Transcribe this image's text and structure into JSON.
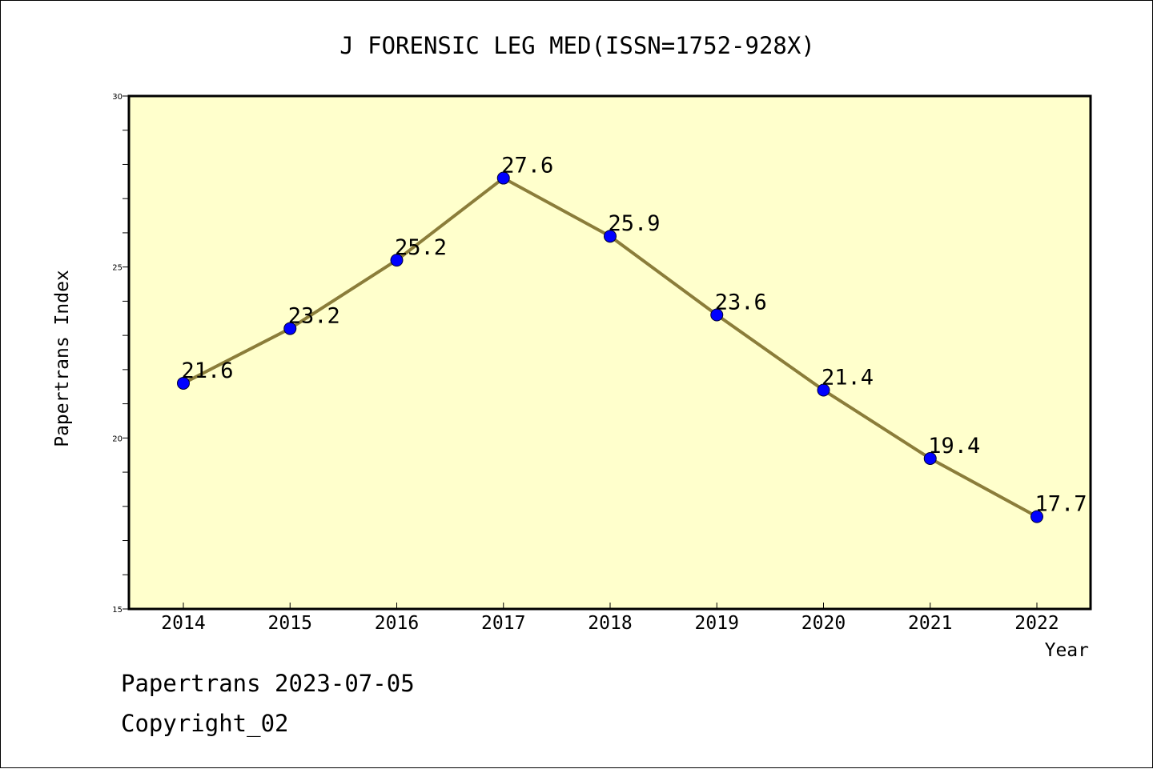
{
  "colors": {
    "plot_background": "#ffffcc",
    "line": "#8b7d3a",
    "marker": "#0000ff",
    "axis": "#000000"
  },
  "footer": {
    "line1": "Papertrans 2023-07-05",
    "line2": "Copyright_02"
  },
  "chart_data": {
    "type": "line",
    "title": "J FORENSIC LEG MED(ISSN=1752-928X)",
    "xlabel": "Year",
    "ylabel": "Papertrans Index",
    "categories": [
      "2014",
      "2015",
      "2016",
      "2017",
      "2018",
      "2019",
      "2020",
      "2021",
      "2022"
    ],
    "series": [
      {
        "values": [
          21.6,
          23.2,
          25.2,
          27.6,
          25.9,
          23.6,
          21.4,
          19.4,
          17.7
        ],
        "labels": [
          "21.6",
          "23.2",
          "25.2",
          "27.6",
          "25.9",
          "23.6",
          "21.4",
          "19.4",
          "17.7"
        ]
      }
    ],
    "ylim": [
      15,
      30
    ],
    "yticks": [
      15,
      20,
      25,
      30
    ],
    "ytick_labels": [
      "15",
      "20",
      "25",
      "30"
    ],
    "y_minor_step": 1,
    "grid": false,
    "legend": "none"
  }
}
